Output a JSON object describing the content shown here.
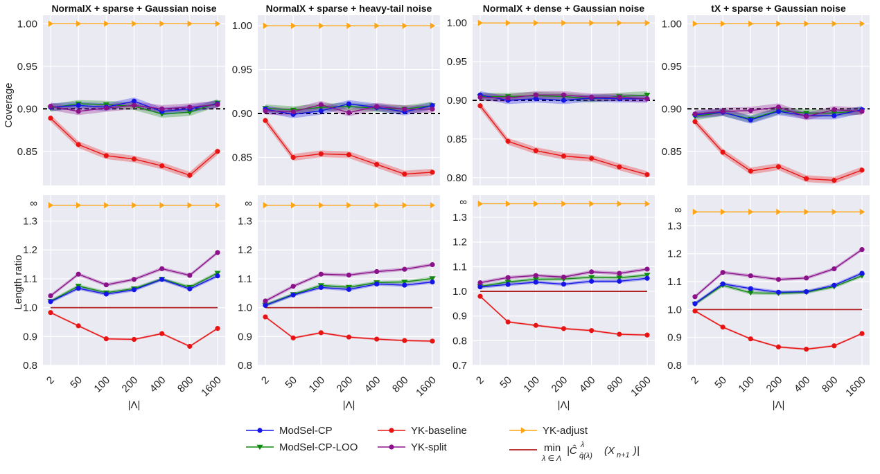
{
  "chart_data": {
    "type": "line",
    "x_ticks": [
      "2",
      "50",
      "100",
      "200",
      "400",
      "800",
      "1600"
    ],
    "xlabel": "|Λ|",
    "row_ylabels": [
      "Coverage",
      "Length ratio"
    ],
    "titles": [
      "NormalX + sparse + Gaussian noise",
      "NormalX + sparse + heavy-tail noise",
      "NormalX + dense + Gaussian noise",
      "tX + sparse + Gaussian noise"
    ],
    "series_meta": [
      {
        "key": "ModSel-CP",
        "name": "ModSel-CP",
        "color": "#1515e8",
        "marker": "circle"
      },
      {
        "key": "ModSel-CP-LOO",
        "name": "ModSel-CP-LOO",
        "color": "#118a11",
        "marker": "triangle-down"
      },
      {
        "key": "YK-baseline",
        "name": "YK-baseline",
        "color": "#e81414",
        "marker": "circle"
      },
      {
        "key": "YK-split",
        "name": "YK-split",
        "color": "#8a118a",
        "marker": "circle"
      },
      {
        "key": "YK-adjust",
        "name": "YK-adjust",
        "color": "#ffa514",
        "marker": "triangle-right"
      }
    ],
    "min_line": {
      "name": "min over λ ∈ Λ of |Ĉ^λ_q̂(λ)(X_{n+1})|",
      "color": "#b01c1c"
    },
    "legend_math": {
      "min": "min",
      "sub": "λ ∈ Λ",
      "expr": "|Ĉ",
      "sup": "λ",
      "qsub": "q̂(λ)",
      "arg": "(X",
      "argsub": "n+1",
      "close": ")|"
    },
    "infinity_label": "∞",
    "coverage": [
      {
        "ylim": [
          0.81,
          1.01
        ],
        "yticks": [
          "1.00",
          "0.95",
          "0.90",
          "0.85"
        ],
        "ytick_values": [
          1.0,
          0.95,
          0.9,
          0.85
        ],
        "target": 0.9,
        "series": {
          "ModSel-CP": [
            0.902,
            0.904,
            0.902,
            0.909,
            0.897,
            0.9,
            0.906
          ],
          "ModSel-CP-LOO": [
            0.901,
            0.906,
            0.905,
            0.903,
            0.894,
            0.896,
            0.907
          ],
          "YK-baseline": [
            0.889,
            0.858,
            0.845,
            0.841,
            0.833,
            0.822,
            0.85
          ],
          "YK-split": [
            0.903,
            0.897,
            0.901,
            0.904,
            0.9,
            0.902,
            0.905
          ],
          "YK-adjust": [
            1.0,
            1.0,
            1.0,
            1.0,
            1.0,
            1.0,
            1.0
          ]
        }
      },
      {
        "ylim": [
          0.818,
          1.012
        ],
        "yticks": [
          "1.00",
          "0.95",
          "0.90",
          "0.85"
        ],
        "ytick_values": [
          1.0,
          0.95,
          0.9,
          0.85
        ],
        "target": 0.9,
        "series": {
          "ModSel-CP": [
            0.905,
            0.899,
            0.903,
            0.911,
            0.907,
            0.902,
            0.909
          ],
          "ModSel-CP-LOO": [
            0.906,
            0.904,
            0.907,
            0.908,
            0.906,
            0.905,
            0.909
          ],
          "YK-baseline": [
            0.892,
            0.85,
            0.854,
            0.853,
            0.842,
            0.831,
            0.833
          ],
          "YK-split": [
            0.903,
            0.902,
            0.91,
            0.901,
            0.908,
            0.905,
            0.905
          ],
          "YK-adjust": [
            1.0,
            1.0,
            1.0,
            1.0,
            1.0,
            1.0,
            1.0
          ]
        }
      },
      {
        "ylim": [
          0.79,
          1.01
        ],
        "yticks": [
          "1.00",
          "0.95",
          "0.90",
          "0.85",
          "0.80"
        ],
        "ytick_values": [
          1.0,
          0.95,
          0.9,
          0.85,
          0.8
        ],
        "target": 0.9,
        "series": {
          "ModSel-CP": [
            0.907,
            0.9,
            0.902,
            0.9,
            0.903,
            0.902,
            0.902
          ],
          "ModSel-CP-LOO": [
            0.905,
            0.905,
            0.906,
            0.905,
            0.902,
            0.905,
            0.907
          ],
          "YK-baseline": [
            0.893,
            0.847,
            0.835,
            0.828,
            0.825,
            0.814,
            0.804
          ],
          "YK-split": [
            0.904,
            0.903,
            0.907,
            0.907,
            0.904,
            0.904,
            0.902
          ],
          "YK-adjust": [
            1.0,
            1.0,
            1.0,
            1.0,
            1.0,
            1.0,
            1.0
          ]
        }
      },
      {
        "ylim": [
          0.81,
          1.01
        ],
        "yticks": [
          "1.00",
          "0.95",
          "0.90",
          "0.85"
        ],
        "ytick_values": [
          1.0,
          0.95,
          0.9,
          0.85
        ],
        "target": 0.9,
        "series": {
          "ModSel-CP": [
            0.893,
            0.896,
            0.887,
            0.897,
            0.892,
            0.892,
            0.899
          ],
          "ModSel-CP-LOO": [
            0.891,
            0.896,
            0.888,
            0.898,
            0.895,
            0.895,
            0.898
          ],
          "YK-baseline": [
            0.885,
            0.849,
            0.827,
            0.832,
            0.818,
            0.816,
            0.828
          ],
          "YK-split": [
            0.894,
            0.897,
            0.898,
            0.902,
            0.891,
            0.899,
            0.897
          ],
          "YK-adjust": [
            1.0,
            1.0,
            1.0,
            1.0,
            1.0,
            1.0,
            1.0
          ]
        }
      }
    ],
    "length_ratio": [
      {
        "ylim": [
          0.8,
          1.39
        ],
        "yticks": [
          "1.3",
          "1.2",
          "1.1",
          "1.0",
          "0.9",
          "0.8"
        ],
        "ytick_values": [
          1.3,
          1.2,
          1.1,
          1.0,
          0.9,
          0.8
        ],
        "infinity_value": 1.355,
        "min_value": 1.0,
        "series": {
          "ModSel-CP": [
            1.021,
            1.067,
            1.047,
            1.062,
            1.098,
            1.065,
            1.11
          ],
          "ModSel-CP-LOO": [
            1.022,
            1.075,
            1.052,
            1.066,
            1.099,
            1.071,
            1.12
          ],
          "YK-baseline": [
            0.983,
            0.937,
            0.892,
            0.89,
            0.91,
            0.866,
            0.928
          ],
          "YK-split": [
            1.041,
            1.116,
            1.079,
            1.098,
            1.135,
            1.112,
            1.191
          ],
          "YK-adjust": [
            1.355,
            1.355,
            1.355,
            1.355,
            1.355,
            1.355,
            1.355
          ]
        }
      },
      {
        "ylim": [
          0.8,
          1.39
        ],
        "yticks": [
          "1.3",
          "1.2",
          "1.1",
          "1.0",
          "0.9",
          "0.8"
        ],
        "ytick_values": [
          1.3,
          1.2,
          1.1,
          1.0,
          0.9,
          0.8
        ],
        "infinity_value": 1.355,
        "min_value": 1.0,
        "series": {
          "ModSel-CP": [
            1.008,
            1.044,
            1.07,
            1.063,
            1.082,
            1.078,
            1.089
          ],
          "ModSel-CP-LOO": [
            1.009,
            1.046,
            1.077,
            1.071,
            1.087,
            1.089,
            1.101
          ],
          "YK-baseline": [
            0.968,
            0.895,
            0.913,
            0.898,
            0.891,
            0.886,
            0.884
          ],
          "YK-split": [
            1.023,
            1.074,
            1.116,
            1.113,
            1.125,
            1.133,
            1.149
          ],
          "YK-adjust": [
            1.355,
            1.355,
            1.355,
            1.355,
            1.355,
            1.355,
            1.355
          ]
        }
      },
      {
        "ylim": [
          0.7,
          1.39
        ],
        "yticks": [
          "1.3",
          "1.2",
          "1.1",
          "1.0",
          "0.9",
          "0.8",
          "0.7"
        ],
        "ytick_values": [
          1.3,
          1.2,
          1.1,
          1.0,
          0.9,
          0.8,
          0.7
        ],
        "infinity_value": 1.355,
        "min_value": 1.0,
        "series": {
          "ModSel-CP": [
            1.018,
            1.028,
            1.037,
            1.029,
            1.041,
            1.041,
            1.053
          ],
          "ModSel-CP-LOO": [
            1.02,
            1.038,
            1.049,
            1.05,
            1.057,
            1.055,
            1.066
          ],
          "YK-baseline": [
            0.98,
            0.876,
            0.862,
            0.849,
            0.841,
            0.826,
            0.823
          ],
          "YK-split": [
            1.035,
            1.056,
            1.064,
            1.058,
            1.079,
            1.073,
            1.09
          ],
          "YK-adjust": [
            1.355,
            1.355,
            1.355,
            1.355,
            1.355,
            1.355,
            1.355
          ]
        }
      },
      {
        "ylim": [
          0.8,
          1.41
        ],
        "yticks": [
          "1.3",
          "1.2",
          "1.1",
          "1.0",
          "0.9",
          "0.8"
        ],
        "ytick_values": [
          1.3,
          1.2,
          1.1,
          1.0,
          0.9,
          0.8
        ],
        "infinity_value": 1.35,
        "min_value": 1.0,
        "series": {
          "ModSel-CP": [
            1.021,
            1.092,
            1.075,
            1.062,
            1.064,
            1.087,
            1.13
          ],
          "ModSel-CP-LOO": [
            1.02,
            1.087,
            1.06,
            1.058,
            1.062,
            1.082,
            1.121
          ],
          "YK-baseline": [
            0.995,
            0.937,
            0.895,
            0.866,
            0.858,
            0.87,
            0.914
          ],
          "YK-split": [
            1.046,
            1.133,
            1.121,
            1.108,
            1.113,
            1.146,
            1.215
          ],
          "YK-adjust": [
            1.35,
            1.35,
            1.35,
            1.35,
            1.35,
            1.35,
            1.35
          ]
        }
      }
    ]
  }
}
